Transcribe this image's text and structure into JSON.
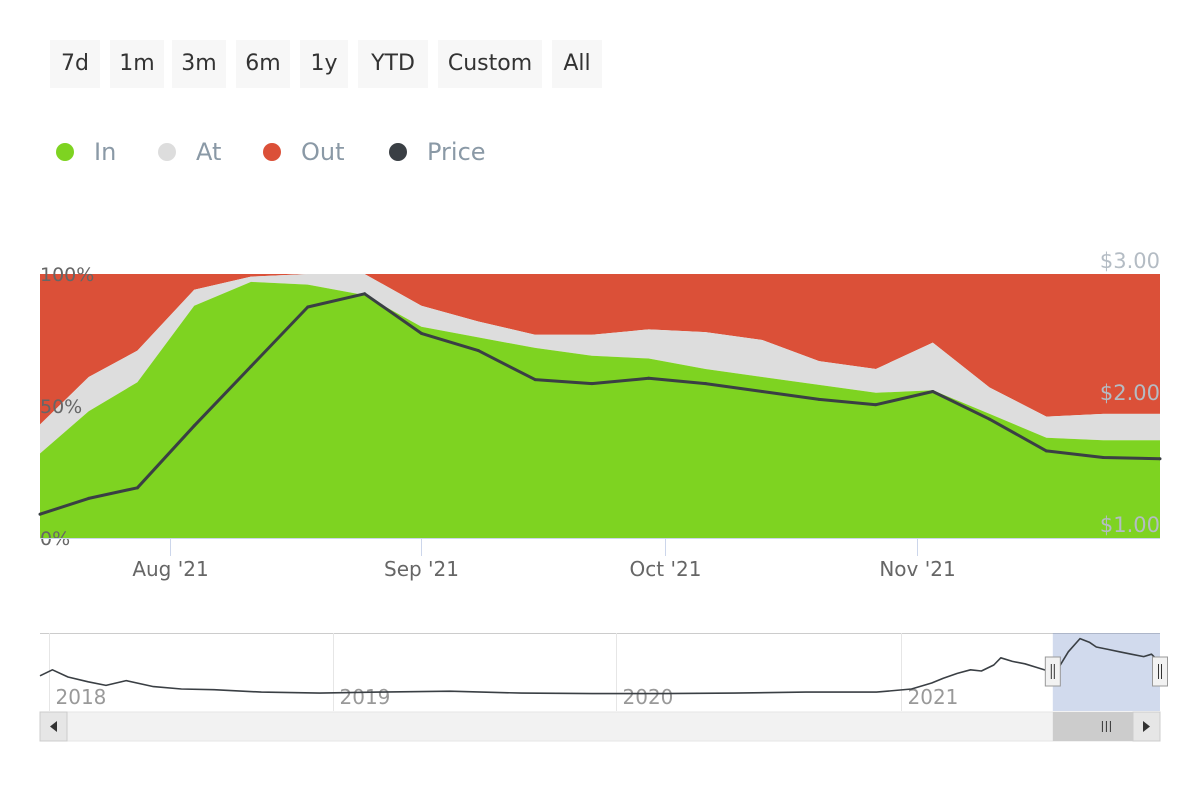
{
  "range_selector": {
    "buttons": [
      {
        "label": "7d"
      },
      {
        "label": "1m"
      },
      {
        "label": "3m"
      },
      {
        "label": "6m"
      },
      {
        "label": "1y"
      },
      {
        "label": "YTD"
      },
      {
        "label": "Custom"
      },
      {
        "label": "All"
      }
    ]
  },
  "legend": {
    "items": [
      {
        "label": "In",
        "color": "#7ed321"
      },
      {
        "label": "At",
        "color": "#dddddd"
      },
      {
        "label": "Out",
        "color": "#db5038"
      },
      {
        "label": "Price",
        "color": "#3a3f44"
      }
    ]
  },
  "chart_data": {
    "type": "area",
    "stacked": "percent",
    "x": [
      "2021-07-16",
      "2021-07-22",
      "2021-07-28",
      "2021-08-04",
      "2021-08-11",
      "2021-08-18",
      "2021-08-25",
      "2021-09-01",
      "2021-09-08",
      "2021-09-15",
      "2021-09-22",
      "2021-09-29",
      "2021-10-06",
      "2021-10-13",
      "2021-10-20",
      "2021-10-27",
      "2021-11-03",
      "2021-11-10",
      "2021-11-17",
      "2021-11-24",
      "2021-12-01"
    ],
    "series": [
      {
        "name": "In",
        "color": "#7ed321",
        "values": [
          32,
          48,
          59,
          88,
          97,
          96,
          92,
          80,
          76,
          72,
          69,
          68,
          64,
          61,
          58,
          55,
          56,
          47,
          38,
          37,
          37
        ]
      },
      {
        "name": "At",
        "color": "#dddddd",
        "values": [
          11,
          13,
          12,
          6,
          2,
          4,
          8,
          8,
          6,
          5,
          8,
          11,
          14,
          14,
          9,
          9,
          18,
          10,
          8,
          10,
          10
        ]
      },
      {
        "name": "Out",
        "color": "#db5038",
        "values": [
          57,
          39,
          29,
          6,
          1,
          0,
          0,
          12,
          18,
          23,
          23,
          21,
          22,
          25,
          33,
          36,
          26,
          43,
          54,
          53,
          53
        ]
      },
      {
        "name": "Price",
        "color": "#3a3f44",
        "axis": "right",
        "values": [
          1.18,
          1.3,
          1.38,
          1.85,
          2.3,
          2.75,
          2.85,
          2.55,
          2.42,
          2.2,
          2.17,
          2.21,
          2.17,
          2.11,
          2.05,
          2.01,
          2.11,
          1.9,
          1.66,
          1.61,
          1.6
        ]
      }
    ],
    "y_axis_left": {
      "ticks": [
        "0%",
        "50%",
        "100%"
      ],
      "ylim": [
        0,
        100
      ]
    },
    "y_axis_right": {
      "ticks": [
        "$1.00",
        "$2.00",
        "$3.00"
      ],
      "ylim": [
        1.0,
        3.0
      ]
    },
    "x_axis": {
      "ticks": [
        {
          "label": "Aug '21",
          "date": "2021-08-01"
        },
        {
          "label": "Sep '21",
          "date": "2021-09-01"
        },
        {
          "label": "Oct '21",
          "date": "2021-10-01"
        },
        {
          "label": "Nov '21",
          "date": "2021-11-01"
        }
      ]
    },
    "grid": false,
    "legend_position": "top-left"
  },
  "navigator": {
    "labels": [
      {
        "label": "2018",
        "date": "2018-01-01"
      },
      {
        "label": "2019",
        "date": "2019-01-01"
      },
      {
        "label": "2020",
        "date": "2020-01-01"
      },
      {
        "label": "2021",
        "date": "2021-01-01"
      }
    ],
    "selected_range": [
      "2021-07-16",
      "2021-12-01"
    ],
    "series": {
      "x": [
        "2017-12-20",
        "2018-01-05",
        "2018-01-25",
        "2018-02-20",
        "2018-03-15",
        "2018-04-10",
        "2018-05-15",
        "2018-06-20",
        "2018-08-01",
        "2018-10-01",
        "2018-12-15",
        "2019-03-01",
        "2019-06-01",
        "2019-09-01",
        "2019-12-01",
        "2020-03-01",
        "2020-06-01",
        "2020-09-01",
        "2020-12-01",
        "2021-01-15",
        "2021-02-10",
        "2021-02-25",
        "2021-03-15",
        "2021-04-01",
        "2021-04-15",
        "2021-05-01",
        "2021-05-10",
        "2021-05-25",
        "2021-06-10",
        "2021-06-25",
        "2021-07-10",
        "2021-07-20",
        "2021-08-05",
        "2021-08-20",
        "2021-09-01",
        "2021-09-10",
        "2021-09-25",
        "2021-10-10",
        "2021-10-25",
        "2021-11-10",
        "2021-11-20",
        "2021-12-01"
      ],
      "values": [
        1.3,
        1.55,
        1.25,
        1.05,
        0.9,
        1.1,
        0.85,
        0.75,
        0.72,
        0.62,
        0.58,
        0.62,
        0.66,
        0.58,
        0.56,
        0.56,
        0.58,
        0.62,
        0.62,
        0.75,
        1.0,
        1.2,
        1.4,
        1.55,
        1.5,
        1.75,
        2.05,
        1.9,
        1.8,
        1.65,
        1.5,
        1.45,
        2.3,
        2.85,
        2.7,
        2.5,
        2.4,
        2.3,
        2.2,
        2.1,
        2.2,
        1.85
      ]
    }
  }
}
